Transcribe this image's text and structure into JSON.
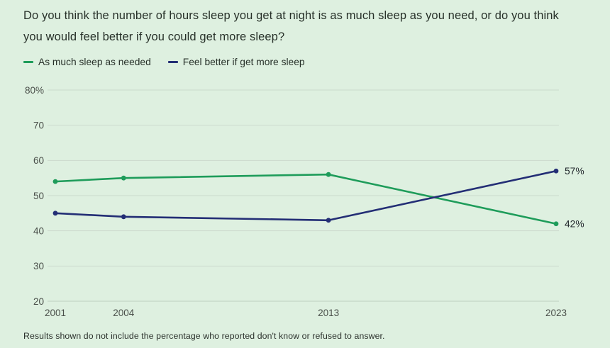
{
  "title": "Do you think the number of hours sleep you get at night is as much sleep as you need, or do you think you would feel better if you could get more sleep?",
  "footnote": "Results shown do not include the percentage who reported don't know or refused to answer.",
  "colors": {
    "background": "#def0e0",
    "green": "#1e9c5a",
    "navy": "#232e75",
    "grid": "#cbdacd",
    "grid_bottom": "#bdd0bf",
    "axis_text": "#4a4f4a",
    "title_text": "#273029",
    "end_label_text": "#20262b"
  },
  "legend": [
    {
      "label": "As much sleep as needed",
      "color_key": "green"
    },
    {
      "label": "Feel better if get more sleep",
      "color_key": "navy"
    }
  ],
  "chart_data": {
    "type": "line",
    "x": [
      2001,
      2004,
      2013,
      2023
    ],
    "x_tick_labels": [
      "2001",
      "2004",
      "2013",
      "2023"
    ],
    "series": [
      {
        "name": "As much sleep as needed",
        "color_key": "green",
        "values": [
          54,
          55,
          56,
          42
        ],
        "end_label": "42%"
      },
      {
        "name": "Feel better if get more sleep",
        "color_key": "navy",
        "values": [
          45,
          44,
          43,
          57
        ],
        "end_label": "57%"
      }
    ],
    "ylim": [
      20,
      80
    ],
    "xlim": [
      2001,
      2023
    ],
    "y_ticks": [
      80,
      70,
      60,
      50,
      40,
      30,
      20
    ],
    "y_tick_labels": [
      "80%",
      "70",
      "60",
      "50",
      "40",
      "30",
      "20"
    ],
    "grid": true,
    "legend_position": "top-left",
    "end_labels_position": "right"
  }
}
